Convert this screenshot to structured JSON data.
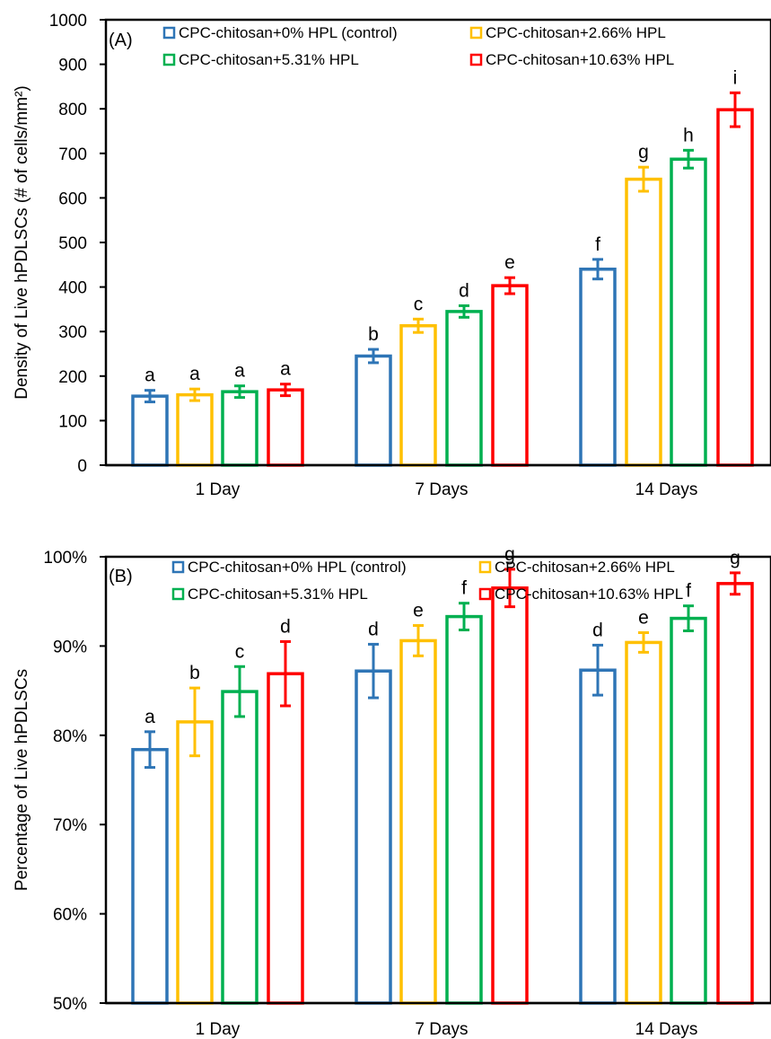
{
  "chart_data": [
    {
      "panel": "(A)",
      "type": "bar",
      "categories": [
        "1 Day",
        "7 Days",
        "14 Days"
      ],
      "series": [
        {
          "name": "CPC-chitosan+0% HPL (control)",
          "color": "#2e75b6",
          "values": [
            155,
            245,
            440
          ],
          "errors": [
            13,
            15,
            22
          ],
          "letters": [
            "a",
            "b",
            "f"
          ]
        },
        {
          "name": "CPC-chitosan+2.66% HPL",
          "color": "#ffc000",
          "values": [
            158,
            313,
            642
          ],
          "errors": [
            13,
            15,
            27
          ],
          "letters": [
            "a",
            "c",
            "g"
          ]
        },
        {
          "name": "CPC-chitosan+5.31% HPL",
          "color": "#00b050",
          "values": [
            165,
            345,
            687
          ],
          "errors": [
            13,
            13,
            20
          ],
          "letters": [
            "a",
            "d",
            "h"
          ]
        },
        {
          "name": "CPC-chitosan+10.63% HPL",
          "color": "#ff0000",
          "values": [
            169,
            403,
            798
          ],
          "errors": [
            13,
            18,
            38
          ],
          "letters": [
            "a",
            "e",
            "i"
          ]
        }
      ],
      "ylabel": "Density of Live hPDLSCs (# of  cells/mm²)",
      "xlabel": "",
      "ylim": [
        0,
        1000
      ],
      "yticks": [
        0,
        100,
        200,
        300,
        400,
        500,
        600,
        700,
        800,
        900,
        1000
      ],
      "ytick_labels": [
        "0",
        "100",
        "200",
        "300",
        "400",
        "500",
        "600",
        "700",
        "800",
        "900",
        "1000"
      ],
      "grid": false,
      "legend": "top"
    },
    {
      "panel": "(B)",
      "type": "bar",
      "categories": [
        "1 Day",
        "7 Days",
        "14 Days"
      ],
      "series": [
        {
          "name": "CPC-chitosan+0% HPL (control)",
          "color": "#2e75b6",
          "values": [
            78.4,
            87.2,
            87.3
          ],
          "errors": [
            2.0,
            3.0,
            2.8
          ],
          "letters": [
            "a",
            "d",
            "d"
          ]
        },
        {
          "name": "CPC-chitosan+2.66% HPL",
          "color": "#ffc000",
          "values": [
            81.5,
            90.6,
            90.4
          ],
          "errors": [
            3.8,
            1.7,
            1.1
          ],
          "letters": [
            "b",
            "e",
            "e"
          ]
        },
        {
          "name": "CPC-chitosan+5.31% HPL",
          "color": "#00b050",
          "values": [
            84.9,
            93.3,
            93.1
          ],
          "errors": [
            2.8,
            1.5,
            1.4
          ],
          "letters": [
            "c",
            "f",
            "f"
          ]
        },
        {
          "name": "CPC-chitosan+10.63% HPL",
          "color": "#ff0000",
          "values": [
            86.9,
            96.5,
            97.0
          ],
          "errors": [
            3.6,
            2.1,
            1.2
          ],
          "letters": [
            "d",
            "g",
            "g"
          ]
        }
      ],
      "ylabel": "Percentage of Live hPDLSCs",
      "xlabel": "",
      "ylim": [
        50,
        100
      ],
      "yticks": [
        50,
        60,
        70,
        80,
        90,
        100
      ],
      "ytick_labels": [
        "50%",
        "60%",
        "70%",
        "80%",
        "90%",
        "100%"
      ],
      "grid": false,
      "legend": "top"
    }
  ]
}
